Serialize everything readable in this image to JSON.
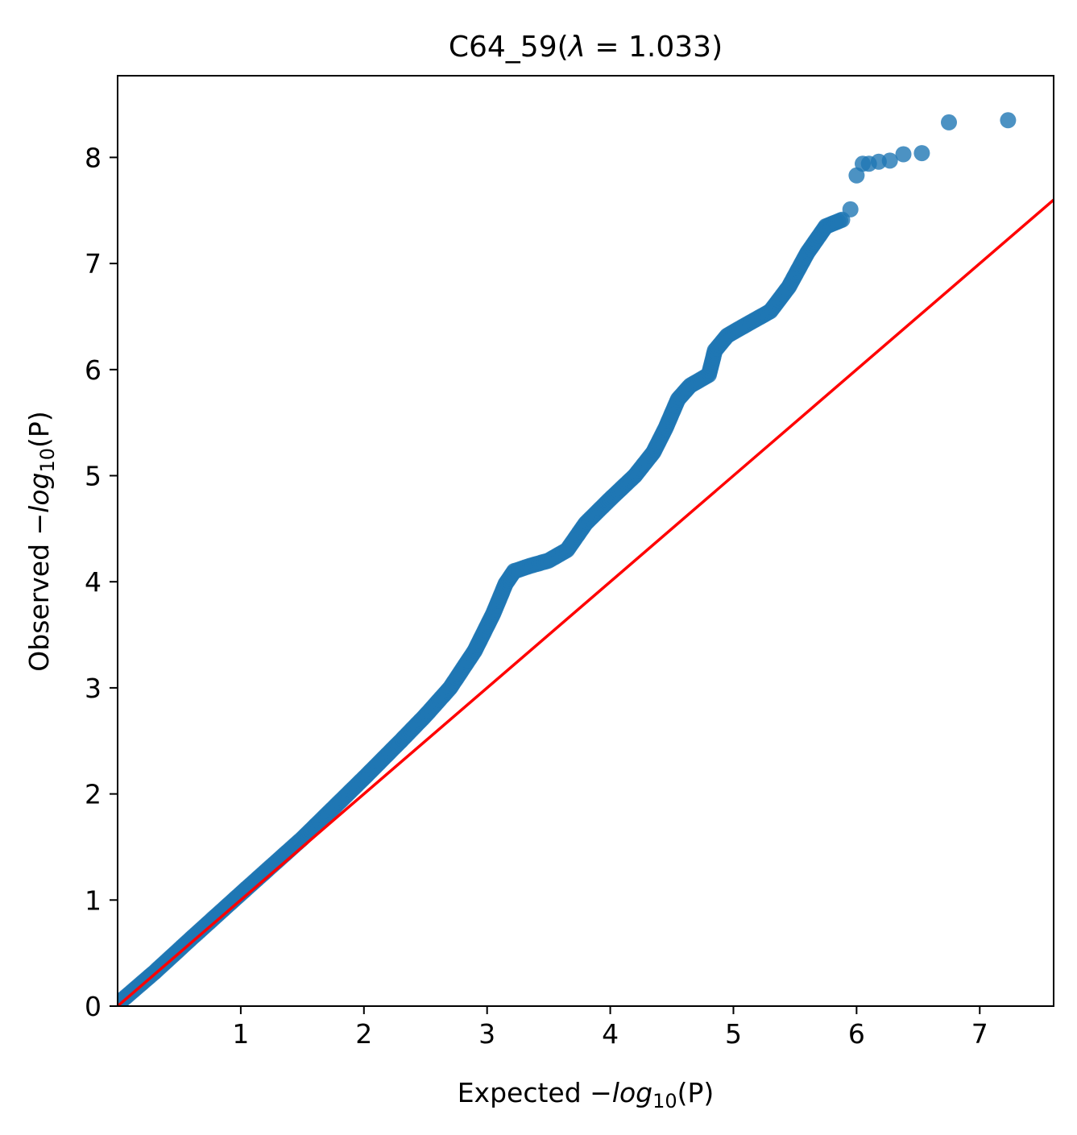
{
  "chart_data": {
    "type": "scatter",
    "title": {
      "prefix": "C64_59(",
      "symbol": "λ",
      "middle": " = 1.033",
      "suffix": ")"
    },
    "xlabel": {
      "prefix": "Expected −",
      "func": "log",
      "subscript": "10",
      "suffix": "(P)"
    },
    "ylabel": {
      "prefix": "Observed −",
      "func": "log",
      "subscript": "10",
      "suffix": "(P)"
    },
    "xlim": [
      0,
      7.6
    ],
    "ylim": [
      0,
      8.77
    ],
    "xticks": [
      1,
      2,
      3,
      4,
      5,
      6,
      7
    ],
    "yticks": [
      0,
      1,
      2,
      3,
      4,
      5,
      6,
      7,
      8
    ],
    "grid": false,
    "point_color": "#1f77b4",
    "reference_line": {
      "color": "#ff0000",
      "x": [
        0,
        7.6
      ],
      "y": [
        0,
        7.6
      ]
    },
    "curve_points": [
      [
        0.0,
        0.02
      ],
      [
        0.3,
        0.32
      ],
      [
        0.6,
        0.64
      ],
      [
        1.0,
        1.06
      ],
      [
        1.5,
        1.58
      ],
      [
        2.0,
        2.15
      ],
      [
        2.3,
        2.5
      ],
      [
        2.5,
        2.74
      ],
      [
        2.7,
        3.0
      ],
      [
        2.9,
        3.35
      ],
      [
        3.05,
        3.7
      ],
      [
        3.15,
        3.98
      ],
      [
        3.22,
        4.1
      ],
      [
        3.35,
        4.15
      ],
      [
        3.5,
        4.2
      ],
      [
        3.65,
        4.3
      ],
      [
        3.8,
        4.55
      ],
      [
        4.0,
        4.78
      ],
      [
        4.2,
        5.0
      ],
      [
        4.35,
        5.22
      ],
      [
        4.45,
        5.45
      ],
      [
        4.55,
        5.72
      ],
      [
        4.65,
        5.85
      ],
      [
        4.8,
        5.95
      ],
      [
        4.85,
        6.18
      ],
      [
        4.95,
        6.32
      ],
      [
        5.1,
        6.42
      ],
      [
        5.3,
        6.55
      ],
      [
        5.45,
        6.78
      ],
      [
        5.6,
        7.1
      ],
      [
        5.75,
        7.35
      ],
      [
        5.9,
        7.42
      ]
    ],
    "outliers": [
      [
        5.95,
        7.51
      ],
      [
        6.0,
        7.83
      ],
      [
        6.05,
        7.94
      ],
      [
        6.1,
        7.94
      ],
      [
        6.18,
        7.96
      ],
      [
        6.27,
        7.97
      ],
      [
        6.38,
        8.03
      ],
      [
        6.53,
        8.04
      ],
      [
        6.75,
        8.33
      ],
      [
        7.23,
        8.35
      ]
    ]
  }
}
